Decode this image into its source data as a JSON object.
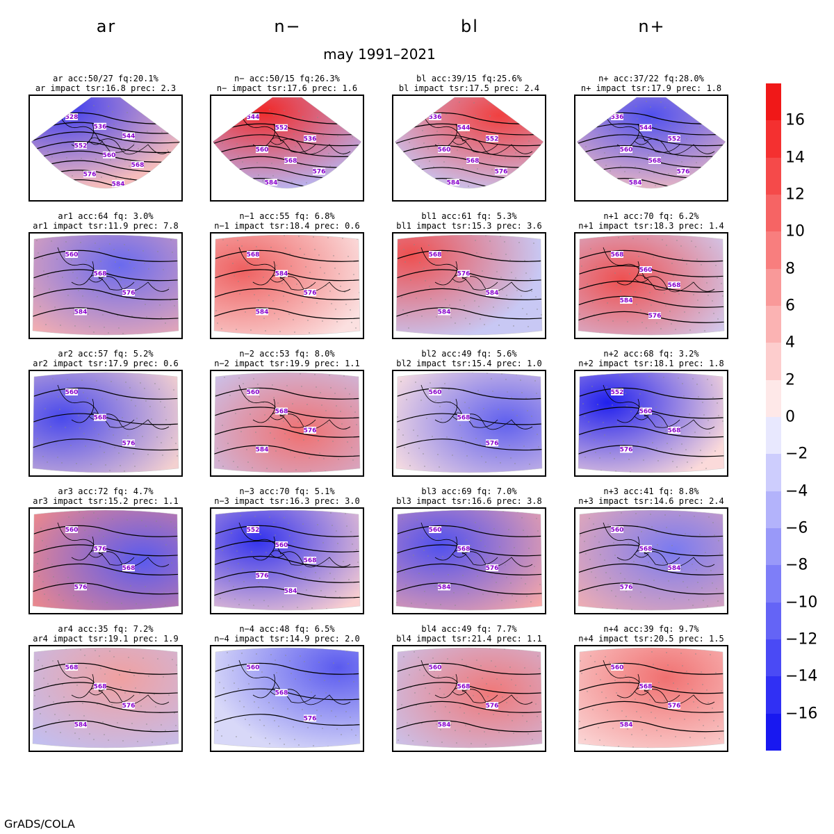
{
  "main_title": "may 1991–2021",
  "footer": "GrADS/COLA",
  "columns": [
    {
      "label": "ar"
    },
    {
      "label": "n−"
    },
    {
      "label": "bl"
    },
    {
      "label": "n+"
    }
  ],
  "colorbar": {
    "labels": [
      "16",
      "14",
      "12",
      "10",
      "8",
      "6",
      "4",
      "2",
      "0",
      "−2",
      "−4",
      "−6",
      "−8",
      "−10",
      "−12",
      "−14",
      "−16"
    ],
    "colors": [
      "#f01818",
      "#f43030",
      "#f54a4a",
      "#f66464",
      "#f87e7e",
      "#f99999",
      "#fbb3b3",
      "#fdcdcd",
      "#fee8e8",
      "#e8e8fe",
      "#cdcdfd",
      "#b3b3fb",
      "#9999f9",
      "#7e7ef8",
      "#6464f6",
      "#4a4af5",
      "#3030f4",
      "#1818f0"
    ]
  },
  "panels": [
    {
      "t1": "ar acc:50/27 fq:20.1%",
      "t2": "ar impact tsr:16.8 prec: 2.3",
      "shape": "cone",
      "gradient": [
        [
          "#3a3af0",
          0.22,
          0.1
        ],
        [
          "#f5bcbc",
          0.8,
          0.55
        ]
      ],
      "contours": [
        "528",
        "536",
        "544",
        "552",
        "560",
        "568",
        "576",
        "584"
      ]
    },
    {
      "t1": "n− acc:50/15 fq:26.3%",
      "t2": "n− impact tsr:17.6 prec: 1.6",
      "shape": "cone",
      "gradient": [
        [
          "#f02a2a",
          0.35,
          0.15
        ],
        [
          "#b8b8f6",
          0.65,
          0.9
        ]
      ],
      "contours": [
        "544",
        "552",
        "536",
        "560",
        "568",
        "576",
        "584"
      ]
    },
    {
      "t1": "bl acc:39/15 fq:25.6%",
      "t2": "bl impact tsr:17.5 prec: 2.4",
      "shape": "cone",
      "gradient": [
        [
          "#f04040",
          0.7,
          0.2
        ],
        [
          "#c8c8f6",
          0.55,
          0.7
        ]
      ],
      "contours": [
        "536",
        "544",
        "552",
        "560",
        "568",
        "576",
        "584"
      ]
    },
    {
      "t1": "n+ acc:37/22 fq:28.0%",
      "t2": "n+ impact tsr:17.9 prec: 1.8",
      "shape": "cone",
      "gradient": [
        [
          "#5050ee",
          0.5,
          0.2
        ],
        [
          "#f6c0c0",
          0.8,
          0.7
        ]
      ],
      "contours": [
        "536",
        "544",
        "552",
        "560",
        "568",
        "576",
        "584"
      ]
    },
    {
      "t1": "ar1 acc:64 fq: 3.0%",
      "t2": "ar1 impact tsr:11.9 prec: 7.8",
      "shape": "fan",
      "gradient": [
        [
          "#6a6aee",
          0.6,
          0.3
        ],
        [
          "#f6b0b0",
          0.15,
          0.2
        ]
      ],
      "contours": [
        "560",
        "568",
        "576",
        "584"
      ]
    },
    {
      "t1": "n−1 acc:55 fq: 6.8%",
      "t2": "n−1 impact tsr:18.4 prec: 0.6",
      "shape": "fan",
      "gradient": [
        [
          "#ee6060",
          0.2,
          0.35
        ],
        [
          "#fbe0e0",
          0.8,
          0.7
        ]
      ],
      "contours": [
        "568",
        "584",
        "576",
        "584"
      ]
    },
    {
      "t1": "bl1 acc:61 fq: 5.3%",
      "t2": "bl1 impact tsr:15.3 prec: 3.6",
      "shape": "fan",
      "gradient": [
        [
          "#ee5050",
          0.1,
          0.2
        ],
        [
          "#c8c8f4",
          0.55,
          0.6
        ]
      ],
      "contours": [
        "568",
        "576",
        "584",
        "584"
      ]
    },
    {
      "t1": "n+1 acc:70 fq: 6.2%",
      "t2": "n+1 impact tsr:18.3 prec: 1.4",
      "shape": "fan",
      "gradient": [
        [
          "#ee5050",
          0.3,
          0.45
        ],
        [
          "#d0d0f6",
          0.85,
          0.15
        ]
      ],
      "contours": [
        "568",
        "560",
        "568",
        "584",
        "576"
      ]
    },
    {
      "t1": "ar2 acc:57 fq: 5.2%",
      "t2": "ar2 impact tsr:17.9 prec: 0.6",
      "shape": "fan",
      "gradient": [
        [
          "#4848ec",
          0.2,
          0.45
        ],
        [
          "#f3d0d0",
          0.7,
          0.2
        ]
      ],
      "contours": [
        "560",
        "568",
        "576"
      ]
    },
    {
      "t1": "n−2 acc:53 fq: 8.0%",
      "t2": "n−2 impact tsr:19.9 prec: 1.1",
      "shape": "fan",
      "gradient": [
        [
          "#f07070",
          0.6,
          0.6
        ],
        [
          "#c8c8f4",
          0.05,
          0.2
        ]
      ],
      "contours": [
        "560",
        "568",
        "576",
        "584"
      ]
    },
    {
      "t1": "bl2 acc:49 fq: 5.6%",
      "t2": "bl2 impact tsr:15.4 prec: 1.0",
      "shape": "fan",
      "gradient": [
        [
          "#6060ee",
          0.75,
          0.5
        ],
        [
          "#fbe0e0",
          0.15,
          0.3
        ]
      ],
      "contours": [
        "560",
        "568",
        "576"
      ]
    },
    {
      "t1": "n+2 acc:68 fq: 3.2%",
      "t2": "n+2 impact tsr:18.1 prec: 1.8",
      "shape": "fan",
      "gradient": [
        [
          "#2020ee",
          0.2,
          0.3
        ],
        [
          "#fbdada",
          0.75,
          0.5
        ]
      ],
      "contours": [
        "552",
        "560",
        "568",
        "576"
      ]
    },
    {
      "t1": "ar3 acc:72 fq: 4.7%",
      "t2": "ar3 impact tsr:15.2 prec: 1.1",
      "shape": "fan",
      "gradient": [
        [
          "#5a5aee",
          0.75,
          0.5
        ],
        [
          "#f08a8a",
          0.15,
          0.15
        ]
      ],
      "contours": [
        "560",
        "576",
        "568",
        "576"
      ]
    },
    {
      "t1": "n−3 acc:70 fq: 5.1%",
      "t2": "n−3 impact tsr:16.3 prec: 3.0",
      "shape": "fan",
      "gradient": [
        [
          "#3232ee",
          0.3,
          0.3
        ],
        [
          "#fbd0d0",
          0.8,
          0.7
        ]
      ],
      "contours": [
        "552",
        "560",
        "568",
        "576",
        "584"
      ]
    },
    {
      "t1": "bl3 acc:69 fq: 7.0%",
      "t2": "bl3 impact tsr:16.6 prec: 3.8",
      "shape": "fan",
      "gradient": [
        [
          "#5050ee",
          0.3,
          0.35
        ],
        [
          "#f6a8a8",
          0.8,
          0.8
        ]
      ],
      "contours": [
        "560",
        "568",
        "576",
        "584"
      ]
    },
    {
      "t1": "n+3 acc:41 fq: 8.8%",
      "t2": "n+3 impact tsr:14.6 prec: 2.4",
      "shape": "fan",
      "gradient": [
        [
          "#7a7af0",
          0.65,
          0.4
        ],
        [
          "#f4b0b0",
          0.1,
          0.3
        ]
      ],
      "contours": [
        "560",
        "568",
        "584",
        "576"
      ]
    },
    {
      "t1": "ar4 acc:35 fq: 7.2%",
      "t2": "ar4 impact tsr:19.1 prec: 1.9",
      "shape": "fan",
      "gradient": [
        [
          "#f0a0a0",
          0.6,
          0.3
        ],
        [
          "#c0c0f4",
          0.15,
          0.75
        ]
      ],
      "contours": [
        "568",
        "568",
        "576",
        "584"
      ]
    },
    {
      "t1": "n−4 acc:48 fq: 6.5%",
      "t2": "n−4 impact tsr:14.9 prec: 2.0",
      "shape": "fan",
      "gradient": [
        [
          "#5a5aee",
          0.85,
          0.2
        ],
        [
          "#d8d8f8",
          0.15,
          0.6
        ]
      ],
      "contours": [
        "560",
        "568",
        "576"
      ]
    },
    {
      "t1": "bl4 acc:49 fq: 7.7%",
      "t2": "bl4 impact tsr:21.4 prec: 1.1",
      "shape": "fan",
      "gradient": [
        [
          "#f07878",
          0.65,
          0.45
        ],
        [
          "#c8c8f4",
          0.1,
          0.15
        ]
      ],
      "contours": [
        "560",
        "568",
        "576",
        "584"
      ]
    },
    {
      "t1": "n+4 acc:39 fq: 9.7%",
      "t2": "n+4 impact tsr:20.5 prec: 1.5",
      "shape": "fan",
      "gradient": [
        [
          "#f07070",
          0.6,
          0.3
        ],
        [
          "#fbd8d8",
          0.2,
          0.8
        ]
      ],
      "contours": [
        "560",
        "568",
        "576",
        "584"
      ]
    }
  ]
}
